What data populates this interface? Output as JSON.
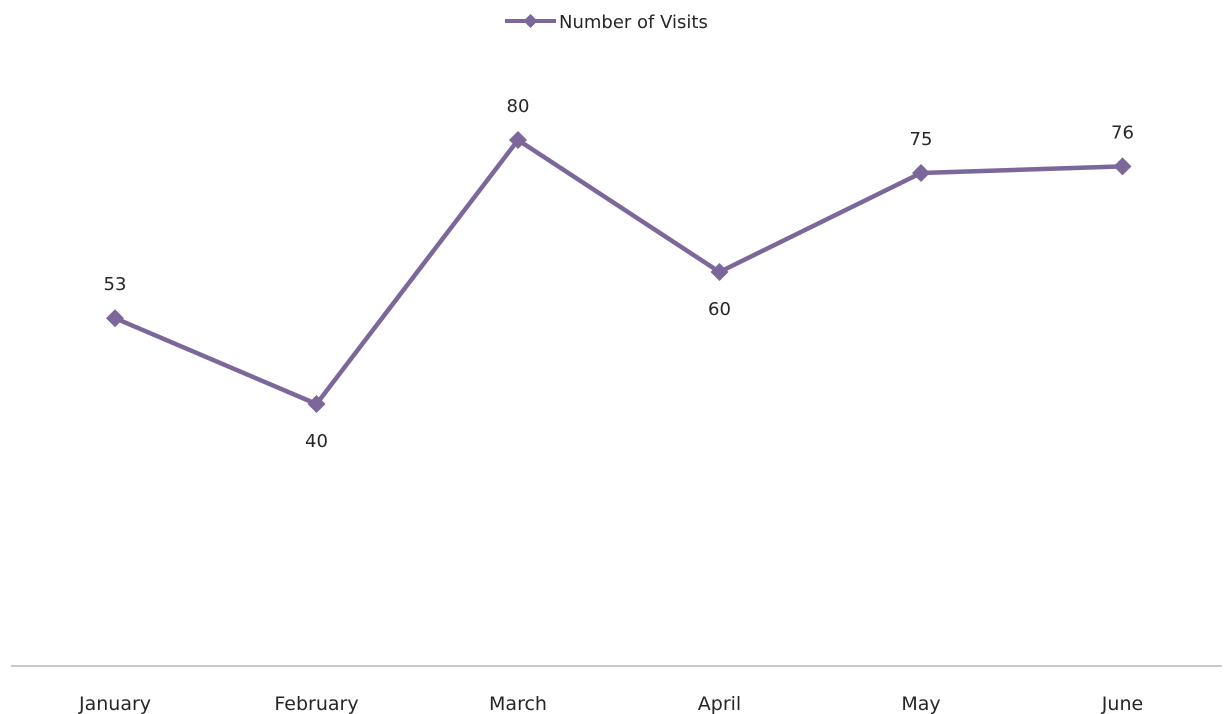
{
  "chart_data": {
    "type": "line",
    "categories": [
      "January",
      "February",
      "March",
      "April",
      "May",
      "June"
    ],
    "series": [
      {
        "name": "Number of Visits",
        "values": [
          53,
          40,
          80,
          60,
          75,
          76
        ],
        "color": "#7B679A"
      }
    ],
    "data_labels": [
      "53",
      "40",
      "80",
      "60",
      "75",
      "76"
    ],
    "legend": {
      "position": "top",
      "label": "Number of Visits"
    },
    "axis_color": "#A6A6A6",
    "grid": false,
    "y_axis_visible": false,
    "marker": "diamond"
  }
}
